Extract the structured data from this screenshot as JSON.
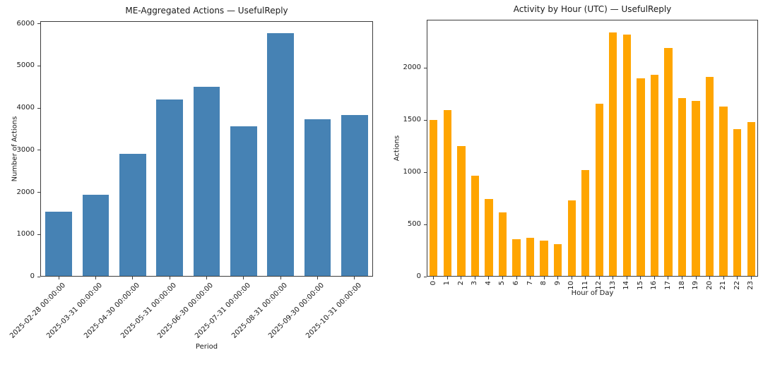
{
  "figure": {
    "background": "#ffffff",
    "text_color": "#1a1a1a",
    "axis_color": "#3c3c3c"
  },
  "chart_data": [
    {
      "type": "bar",
      "title": "ME-Aggregated Actions — UsefulReply",
      "xlabel": "Period",
      "ylabel": "Number of Actions",
      "bar_color": "#4682B4",
      "categories": [
        "2025-02-28 00:00:00",
        "2025-03-31 00:00:00",
        "2025-04-30 00:00:00",
        "2025-05-31 00:00:00",
        "2025-06-30 00:00:00",
        "2025-07-31 00:00:00",
        "2025-08-31 00:00:00",
        "2025-09-30 00:00:00",
        "2025-10-31 00:00:00"
      ],
      "values": [
        1540,
        1950,
        2910,
        4200,
        4500,
        3570,
        5780,
        3740,
        3840
      ],
      "yticks": [
        0,
        1000,
        2000,
        3000,
        4000,
        5000,
        6000
      ],
      "ylim": [
        0,
        6060
      ],
      "tick_label_rotation": 45,
      "grid": false,
      "legend": null
    },
    {
      "type": "bar",
      "title": "Activity by Hour (UTC) — UsefulReply",
      "xlabel": "Hour of Day",
      "ylabel": "Actions",
      "bar_color": "#FFA500",
      "categories": [
        "0",
        "1",
        "2",
        "3",
        "4",
        "5",
        "6",
        "7",
        "8",
        "9",
        "10",
        "11",
        "12",
        "13",
        "14",
        "15",
        "16",
        "17",
        "18",
        "19",
        "20",
        "21",
        "22",
        "23"
      ],
      "values": [
        1500,
        1595,
        1250,
        965,
        745,
        615,
        355,
        375,
        345,
        310,
        730,
        1020,
        1655,
        2340,
        2320,
        1900,
        1930,
        2190,
        1710,
        1685,
        1915,
        1630,
        1415,
        1480
      ],
      "yticks": [
        0,
        500,
        1000,
        1500,
        2000
      ],
      "ylim": [
        0,
        2460
      ],
      "tick_label_rotation": 90,
      "grid": false,
      "legend": null
    }
  ]
}
